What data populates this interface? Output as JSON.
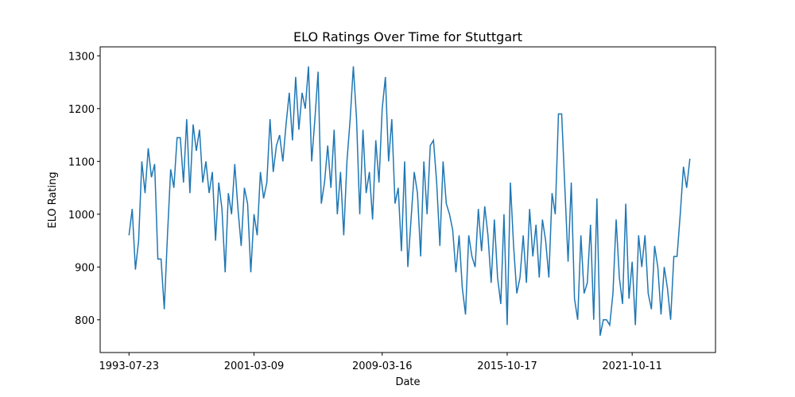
{
  "chart_data": {
    "type": "line",
    "title": "ELO Ratings Over Time for Stuttgart",
    "xlabel": "Date",
    "ylabel": "ELO Rating",
    "color": "#1f77b4",
    "values": [
      960,
      1010,
      895,
      950,
      1100,
      1040,
      1125,
      1070,
      1095,
      915,
      915,
      820,
      960,
      1085,
      1050,
      1145,
      1145,
      1060,
      1180,
      1040,
      1170,
      1120,
      1160,
      1060,
      1100,
      1040,
      1080,
      950,
      1060,
      1010,
      890,
      1040,
      1000,
      1095,
      1010,
      940,
      1050,
      1020,
      890,
      1000,
      960,
      1080,
      1030,
      1060,
      1180,
      1080,
      1130,
      1150,
      1100,
      1170,
      1230,
      1140,
      1260,
      1160,
      1230,
      1200,
      1280,
      1100,
      1180,
      1270,
      1020,
      1060,
      1130,
      1050,
      1160,
      1000,
      1080,
      960,
      1100,
      1180,
      1280,
      1180,
      1000,
      1160,
      1040,
      1080,
      990,
      1140,
      1060,
      1200,
      1260,
      1100,
      1180,
      1020,
      1050,
      930,
      1100,
      900,
      990,
      1080,
      1040,
      920,
      1100,
      1000,
      1130,
      1140,
      1060,
      940,
      1100,
      1020,
      1000,
      970,
      890,
      960,
      860,
      810,
      960,
      920,
      900,
      1010,
      930,
      1015,
      960,
      870,
      990,
      880,
      830,
      1000,
      790,
      1060,
      940,
      850,
      880,
      960,
      870,
      1010,
      920,
      980,
      880,
      990,
      950,
      880,
      1040,
      1000,
      1190,
      1190,
      1050,
      910,
      1060,
      840,
      800,
      960,
      850,
      870,
      980,
      800,
      1030,
      770,
      800,
      800,
      790,
      850,
      990,
      880,
      830,
      1020,
      840,
      910,
      790,
      960,
      900,
      960,
      850,
      820,
      940,
      900,
      810,
      900,
      860,
      800,
      920,
      920,
      1000,
      1090,
      1050,
      1105
    ],
    "xlim": [
      -9,
      183
    ],
    "xticks": [
      {
        "value": 0,
        "label": "1993-07-23"
      },
      {
        "value": 39,
        "label": "2001-03-09"
      },
      {
        "value": 79,
        "label": "2009-03-16"
      },
      {
        "value": 118,
        "label": "2015-10-17"
      },
      {
        "value": 157,
        "label": "2021-10-11"
      }
    ],
    "ylim": [
      738,
      1317
    ],
    "yticks": [
      800,
      900,
      1000,
      1100,
      1200,
      1300
    ]
  }
}
